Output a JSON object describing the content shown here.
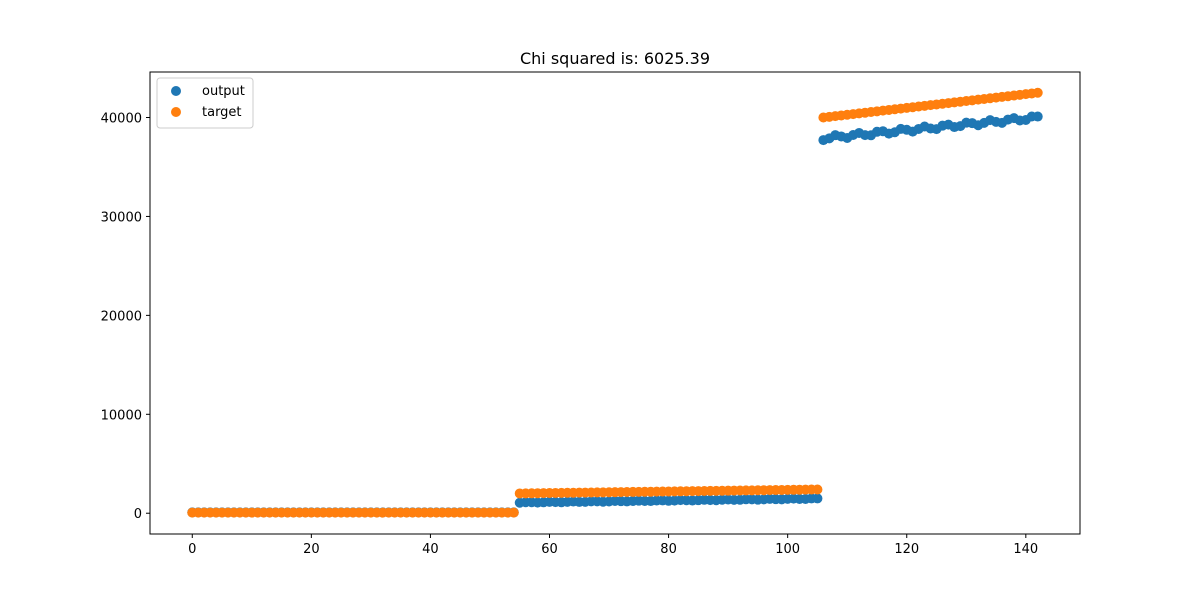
{
  "chart_data": {
    "type": "scatter",
    "title": "Chi squared is: 6025.39",
    "xlabel": "",
    "ylabel": "",
    "xlim": [
      -7.1,
      149.1
    ],
    "ylim": [
      -2100,
      44600
    ],
    "xticks": [
      0,
      20,
      40,
      60,
      80,
      100,
      120,
      140
    ],
    "yticks": [
      0,
      10000,
      20000,
      30000,
      40000
    ],
    "grid": false,
    "legend_position": "top-left",
    "series": [
      {
        "name": "output",
        "color": "#1f77b4",
        "segments": [
          {
            "x_start": 0,
            "x_end": 54,
            "y_start": 80,
            "y_end": 80,
            "wiggle": 0
          },
          {
            "x_start": 55,
            "x_end": 105,
            "y_start": 1080,
            "y_end": 1480,
            "wiggle": 30
          },
          {
            "x_start": 106,
            "x_end": 142,
            "y_start": 37900,
            "y_end": 40000,
            "wiggle": 200
          }
        ]
      },
      {
        "name": "target",
        "color": "#ff7f0e",
        "segments": [
          {
            "x_start": 0,
            "x_end": 54,
            "y_start": 60,
            "y_end": 60,
            "wiggle": 0
          },
          {
            "x_start": 55,
            "x_end": 105,
            "y_start": 2000,
            "y_end": 2400,
            "wiggle": 0
          },
          {
            "x_start": 106,
            "x_end": 142,
            "y_start": 40000,
            "y_end": 42500,
            "wiggle": 0
          }
        ]
      }
    ]
  }
}
